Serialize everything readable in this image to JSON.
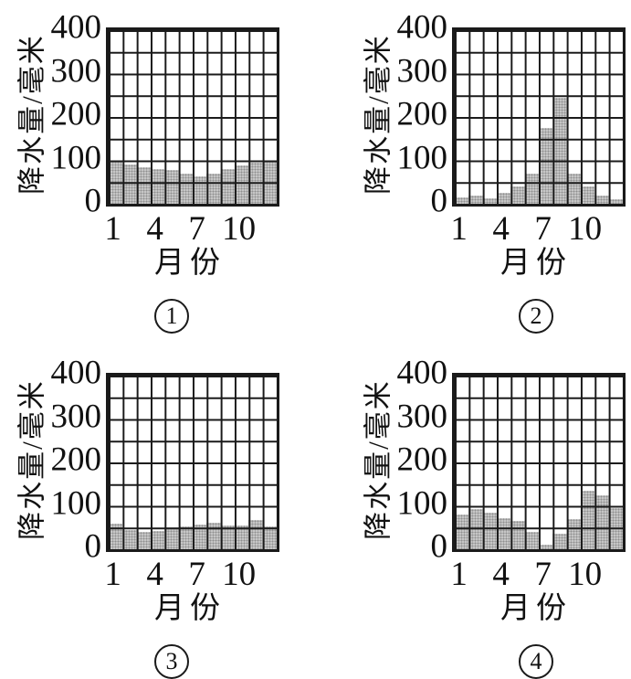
{
  "page": {
    "background": "#ffffff",
    "line_color": "#1a1a1a",
    "bar_fill_color": "#c6c6c6"
  },
  "figure": {
    "yticks": [
      "400",
      "300",
      "200",
      "100",
      "0"
    ],
    "xticks": [
      "1",
      "4",
      "7",
      "10"
    ]
  },
  "chart_data": [
    {
      "type": "bar",
      "caption_number": "1",
      "ylabel": "降水量/毫米",
      "xlabel": "月份",
      "x": [
        1,
        2,
        3,
        4,
        5,
        6,
        7,
        8,
        9,
        10,
        11,
        12
      ],
      "values": [
        100,
        90,
        85,
        80,
        78,
        70,
        64,
        70,
        80,
        88,
        95,
        100
      ],
      "ylim": [
        0,
        400
      ],
      "ytick_values": [
        0,
        100,
        200,
        300,
        400
      ],
      "xtick_values": [
        1,
        4,
        7,
        10
      ],
      "grid": true,
      "grid_minor_step_mm": 50,
      "bar_color": "#c6c6c6"
    },
    {
      "type": "bar",
      "caption_number": "2",
      "ylabel": "降水量/毫米",
      "xlabel": "月份",
      "x": [
        1,
        2,
        3,
        4,
        5,
        6,
        7,
        8,
        9,
        10,
        11,
        12
      ],
      "values": [
        15,
        20,
        12,
        25,
        40,
        70,
        175,
        245,
        70,
        40,
        20,
        10
      ],
      "ylim": [
        0,
        400
      ],
      "ytick_values": [
        0,
        100,
        200,
        300,
        400
      ],
      "xtick_values": [
        1,
        4,
        7,
        10
      ],
      "grid": true,
      "grid_minor_step_mm": 50,
      "bar_color": "#c6c6c6"
    },
    {
      "type": "bar",
      "caption_number": "3",
      "ylabel": "降水量/毫米",
      "xlabel": "月份",
      "x": [
        1,
        2,
        3,
        4,
        5,
        6,
        7,
        8,
        9,
        10,
        11,
        12
      ],
      "values": [
        60,
        45,
        40,
        42,
        50,
        52,
        57,
        62,
        55,
        55,
        68,
        52
      ],
      "ylim": [
        0,
        400
      ],
      "ytick_values": [
        0,
        100,
        200,
        300,
        400
      ],
      "xtick_values": [
        1,
        4,
        7,
        10
      ],
      "grid": true,
      "grid_minor_step_mm": 50,
      "bar_color": "#c6c6c6"
    },
    {
      "type": "bar",
      "caption_number": "4",
      "ylabel": "降水量/毫米",
      "xlabel": "月份",
      "x": [
        1,
        2,
        3,
        4,
        5,
        6,
        7,
        8,
        9,
        10,
        11,
        12
      ],
      "values": [
        80,
        92,
        85,
        72,
        65,
        40,
        10,
        35,
        70,
        135,
        125,
        95
      ],
      "ylim": [
        0,
        400
      ],
      "ytick_values": [
        0,
        100,
        200,
        300,
        400
      ],
      "xtick_values": [
        1,
        4,
        7,
        10
      ],
      "grid": true,
      "grid_minor_step_mm": 50,
      "bar_color": "#c6c6c6"
    }
  ]
}
